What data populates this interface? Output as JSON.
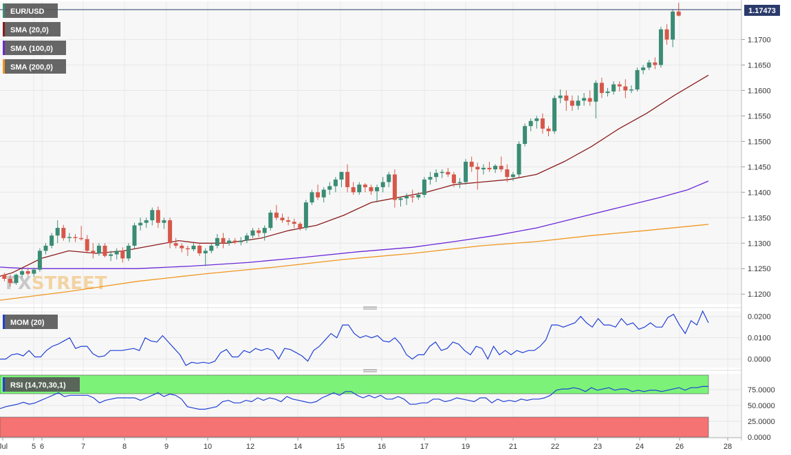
{
  "chart_data": [
    {
      "type": "candlestick",
      "symbol": "EUR/USD",
      "last_price": "1.17473",
      "overlays": [
        {
          "name": "SMA (20,0)",
          "color": "#8b1a1a"
        },
        {
          "name": "SMA (100,0)",
          "color": "#6a28d9"
        },
        {
          "name": "SMA (200,0)",
          "color": "#f0961e"
        }
      ],
      "y_ticks": [
        "1.1700",
        "1.1650",
        "1.1600",
        "1.1550",
        "1.1500",
        "1.1450",
        "1.1400",
        "1.1350",
        "1.1300",
        "1.1250",
        "1.1200"
      ],
      "x_ticks": [
        "Jul",
        "5",
        "6",
        "7",
        "8",
        "9",
        "10",
        "12",
        "14",
        "15",
        "16",
        "17",
        "19",
        "21",
        "22",
        "23",
        "24",
        "26",
        "28"
      ],
      "ylim": [
        1.118,
        1.1775
      ],
      "up_color": "#3a8c74",
      "down_color": "#d6584a",
      "candles": [
        [
          1.1238,
          1.1242,
          1.1225,
          1.123
        ],
        [
          1.123,
          1.1238,
          1.1215,
          1.1222
        ],
        [
          1.1222,
          1.124,
          1.1218,
          1.1238
        ],
        [
          1.1238,
          1.125,
          1.1232,
          1.1245
        ],
        [
          1.1245,
          1.1252,
          1.1236,
          1.124
        ],
        [
          1.124,
          1.1252,
          1.1234,
          1.1248
        ],
        [
          1.1248,
          1.129,
          1.1244,
          1.1285
        ],
        [
          1.1285,
          1.13,
          1.1278,
          1.1295
        ],
        [
          1.1295,
          1.132,
          1.129,
          1.1315
        ],
        [
          1.1315,
          1.1345,
          1.13,
          1.133
        ],
        [
          1.133,
          1.1336,
          1.1305,
          1.131
        ],
        [
          1.131,
          1.132,
          1.1302,
          1.1312
        ],
        [
          1.1312,
          1.1318,
          1.1302,
          1.131
        ],
        [
          1.131,
          1.1334,
          1.1305,
          1.1308
        ],
        [
          1.1308,
          1.1316,
          1.128,
          1.1285
        ],
        [
          1.1285,
          1.13,
          1.127,
          1.128
        ],
        [
          1.128,
          1.13,
          1.1275,
          1.1295
        ],
        [
          1.1295,
          1.13,
          1.1272,
          1.1275
        ],
        [
          1.1275,
          1.1285,
          1.1265,
          1.1278
        ],
        [
          1.1278,
          1.129,
          1.1268,
          1.1285
        ],
        [
          1.1285,
          1.1292,
          1.1262,
          1.127
        ],
        [
          1.127,
          1.13,
          1.1265,
          1.1295
        ],
        [
          1.1295,
          1.134,
          1.129,
          1.1335
        ],
        [
          1.1335,
          1.135,
          1.1325,
          1.134
        ],
        [
          1.134,
          1.135,
          1.133,
          1.1345
        ],
        [
          1.1345,
          1.137,
          1.1335,
          1.1365
        ],
        [
          1.1365,
          1.1372,
          1.133,
          1.134
        ],
        [
          1.134,
          1.135,
          1.1328,
          1.1345
        ],
        [
          1.1345,
          1.135,
          1.129,
          1.13
        ],
        [
          1.13,
          1.131,
          1.129,
          1.1295
        ],
        [
          1.1295,
          1.13,
          1.1282,
          1.129
        ],
        [
          1.129,
          1.1295,
          1.1275,
          1.1288
        ],
        [
          1.1288,
          1.13,
          1.1284,
          1.1295
        ],
        [
          1.1295,
          1.1298,
          1.1275,
          1.128
        ],
        [
          1.128,
          1.129,
          1.1255,
          1.1285
        ],
        [
          1.1285,
          1.13,
          1.128,
          1.1295
        ],
        [
          1.1295,
          1.1318,
          1.129,
          1.131
        ],
        [
          1.131,
          1.132,
          1.129,
          1.13
        ],
        [
          1.13,
          1.131,
          1.1295,
          1.1305
        ],
        [
          1.1305,
          1.131,
          1.1298,
          1.1302
        ],
        [
          1.1302,
          1.1312,
          1.1296,
          1.1305
        ],
        [
          1.1305,
          1.132,
          1.13,
          1.1315
        ],
        [
          1.1315,
          1.133,
          1.131,
          1.1325
        ],
        [
          1.1325,
          1.133,
          1.1312,
          1.132
        ],
        [
          1.132,
          1.1335,
          1.1305,
          1.133
        ],
        [
          1.133,
          1.1365,
          1.1325,
          1.136
        ],
        [
          1.136,
          1.1375,
          1.1345,
          1.135
        ],
        [
          1.135,
          1.1358,
          1.134,
          1.1345
        ],
        [
          1.1345,
          1.1352,
          1.1335,
          1.1342
        ],
        [
          1.1342,
          1.1348,
          1.133,
          1.1338
        ],
        [
          1.1338,
          1.1342,
          1.1325,
          1.133
        ],
        [
          1.133,
          1.1385,
          1.1325,
          1.138
        ],
        [
          1.138,
          1.1405,
          1.1375,
          1.14
        ],
        [
          1.14,
          1.1415,
          1.1385,
          1.139
        ],
        [
          1.139,
          1.141,
          1.138,
          1.1405
        ],
        [
          1.1405,
          1.142,
          1.1395,
          1.1412
        ],
        [
          1.1412,
          1.143,
          1.14,
          1.1425
        ],
        [
          1.1425,
          1.144,
          1.141,
          1.144
        ],
        [
          1.144,
          1.1455,
          1.14,
          1.141
        ],
        [
          1.141,
          1.142,
          1.1395,
          1.14
        ],
        [
          1.14,
          1.142,
          1.1395,
          1.1415
        ],
        [
          1.1415,
          1.1418,
          1.14,
          1.141
        ],
        [
          1.141,
          1.1415,
          1.1395,
          1.1402
        ],
        [
          1.1402,
          1.1415,
          1.138,
          1.141
        ],
        [
          1.141,
          1.143,
          1.14,
          1.142
        ],
        [
          1.142,
          1.144,
          1.141,
          1.1435
        ],
        [
          1.1435,
          1.1445,
          1.137,
          1.1385
        ],
        [
          1.1385,
          1.1392,
          1.1372,
          1.1388
        ],
        [
          1.1388,
          1.1398,
          1.1375,
          1.1392
        ],
        [
          1.1392,
          1.1405,
          1.138,
          1.139
        ],
        [
          1.139,
          1.14,
          1.1385,
          1.1395
        ],
        [
          1.1395,
          1.143,
          1.139,
          1.1425
        ],
        [
          1.1425,
          1.144,
          1.1415,
          1.143
        ],
        [
          1.143,
          1.1445,
          1.142,
          1.1438
        ],
        [
          1.1438,
          1.1445,
          1.1428,
          1.144
        ],
        [
          1.144,
          1.1448,
          1.143,
          1.1435
        ],
        [
          1.1435,
          1.144,
          1.141,
          1.1418
        ],
        [
          1.1418,
          1.1428,
          1.1408,
          1.142
        ],
        [
          1.142,
          1.1465,
          1.1415,
          1.146
        ],
        [
          1.146,
          1.147,
          1.144,
          1.145
        ],
        [
          1.145,
          1.1458,
          1.1405,
          1.1445
        ],
        [
          1.1445,
          1.1455,
          1.1435,
          1.1448
        ],
        [
          1.1448,
          1.146,
          1.144,
          1.1445
        ],
        [
          1.1445,
          1.1455,
          1.1438,
          1.1452
        ],
        [
          1.1452,
          1.147,
          1.144,
          1.1445
        ],
        [
          1.1445,
          1.1455,
          1.142,
          1.143
        ],
        [
          1.143,
          1.144,
          1.1422,
          1.1435
        ],
        [
          1.1435,
          1.15,
          1.143,
          1.1495
        ],
        [
          1.1495,
          1.1535,
          1.149,
          1.153
        ],
        [
          1.153,
          1.1545,
          1.152,
          1.154
        ],
        [
          1.154,
          1.155,
          1.1525,
          1.1545
        ],
        [
          1.1545,
          1.1555,
          1.1515,
          1.1525
        ],
        [
          1.1525,
          1.153,
          1.151,
          1.152
        ],
        [
          1.152,
          1.159,
          1.1515,
          1.1585
        ],
        [
          1.1585,
          1.1602,
          1.1575,
          1.159
        ],
        [
          1.159,
          1.16,
          1.156,
          1.158
        ],
        [
          1.158,
          1.159,
          1.156,
          1.157
        ],
        [
          1.157,
          1.159,
          1.1562,
          1.158
        ],
        [
          1.158,
          1.1595,
          1.157,
          1.1585
        ],
        [
          1.1585,
          1.16,
          1.157,
          1.1578
        ],
        [
          1.1578,
          1.162,
          1.1545,
          1.1615
        ],
        [
          1.1615,
          1.1625,
          1.1585,
          1.1595
        ],
        [
          1.1595,
          1.1605,
          1.1588,
          1.1598
        ],
        [
          1.1598,
          1.1618,
          1.1592,
          1.1612
        ],
        [
          1.1612,
          1.1618,
          1.1598,
          1.1608
        ],
        [
          1.1608,
          1.1622,
          1.1585,
          1.16
        ],
        [
          1.16,
          1.161,
          1.1595,
          1.1602
        ],
        [
          1.1602,
          1.1645,
          1.1598,
          1.164
        ],
        [
          1.164,
          1.165,
          1.1632,
          1.1645
        ],
        [
          1.1645,
          1.166,
          1.164,
          1.1655
        ],
        [
          1.1655,
          1.1665,
          1.1642,
          1.165
        ],
        [
          1.165,
          1.1725,
          1.1645,
          1.172
        ],
        [
          1.172,
          1.173,
          1.169,
          1.17
        ],
        [
          1.17,
          1.176,
          1.1685,
          1.1755
        ],
        [
          1.1755,
          1.1772,
          1.1745,
          1.1747
        ]
      ],
      "sma20": [
        [
          0,
          1.1235
        ],
        [
          18,
          1.1242
        ],
        [
          60,
          1.127
        ],
        [
          100,
          1.1285
        ],
        [
          140,
          1.128
        ],
        [
          180,
          1.1285
        ],
        [
          220,
          1.1295
        ],
        [
          260,
          1.1305
        ],
        [
          290,
          1.13
        ],
        [
          330,
          1.13
        ],
        [
          380,
          1.131
        ],
        [
          420,
          1.1325
        ],
        [
          460,
          1.1335
        ],
        [
          500,
          1.1355
        ],
        [
          540,
          1.138
        ],
        [
          580,
          1.139
        ],
        [
          620,
          1.14
        ],
        [
          660,
          1.1415
        ],
        [
          700,
          1.142
        ],
        [
          740,
          1.1425
        ],
        [
          780,
          1.1435
        ],
        [
          820,
          1.146
        ],
        [
          860,
          1.149
        ],
        [
          900,
          1.1525
        ],
        [
          940,
          1.1555
        ],
        [
          980,
          1.159
        ],
        [
          1030,
          1.163
        ]
      ],
      "sma100": [
        [
          0,
          1.1253
        ],
        [
          40,
          1.125
        ],
        [
          120,
          1.125
        ],
        [
          200,
          1.125
        ],
        [
          280,
          1.1255
        ],
        [
          360,
          1.1262
        ],
        [
          440,
          1.1272
        ],
        [
          520,
          1.1283
        ],
        [
          600,
          1.1292
        ],
        [
          660,
          1.1303
        ],
        [
          720,
          1.1315
        ],
        [
          780,
          1.133
        ],
        [
          840,
          1.135
        ],
        [
          900,
          1.137
        ],
        [
          960,
          1.139
        ],
        [
          1000,
          1.1405
        ],
        [
          1030,
          1.1422
        ]
      ],
      "sma200": [
        [
          0,
          1.1188
        ],
        [
          100,
          1.1205
        ],
        [
          200,
          1.1225
        ],
        [
          300,
          1.124
        ],
        [
          400,
          1.1253
        ],
        [
          500,
          1.1268
        ],
        [
          600,
          1.128
        ],
        [
          700,
          1.1295
        ],
        [
          780,
          1.1303
        ],
        [
          860,
          1.1315
        ],
        [
          940,
          1.1325
        ],
        [
          1030,
          1.1337
        ]
      ]
    },
    {
      "type": "line",
      "name": "MOM (20)",
      "color": "#1f3fd6",
      "y_ticks": [
        "0.0200",
        "0.0100",
        "0.0000"
      ],
      "ylim": [
        -0.004,
        0.0225
      ],
      "values": [
        0.0,
        0.0,
        0.002,
        0.0025,
        0.0015,
        0.004,
        0.001,
        0.001,
        0.004,
        0.006,
        0.007,
        0.0085,
        0.01,
        0.005,
        0.006,
        0.006,
        0.0025,
        0.001,
        0.0015,
        0.004,
        0.004,
        0.004,
        0.0045,
        0.005,
        0.004,
        0.01,
        0.0085,
        0.008,
        0.011,
        0.008,
        0.005,
        0.002,
        -0.003,
        -0.0015,
        -0.002,
        -0.0015,
        -0.002,
        -0.001,
        0.003,
        0.0045,
        0.001,
        0.001,
        0.004,
        0.003,
        0.005,
        0.004,
        0.005,
        0.004,
        0.0,
        0.005,
        0.0045,
        0.003,
        0.0015,
        -0.001,
        0.004,
        0.006,
        0.009,
        0.012,
        0.01,
        0.016,
        0.016,
        0.012,
        0.01,
        0.011,
        0.01,
        0.011,
        0.0085,
        0.008,
        0.01,
        0.007,
        0.002,
        0.0,
        0.002,
        0.002,
        0.006,
        0.008,
        0.004,
        0.005,
        0.008,
        0.007,
        0.004,
        0.002,
        0.006,
        0.005,
        0.0,
        0.006,
        0.002,
        0.004,
        0.002,
        0.004,
        0.003,
        0.004,
        0.004,
        0.006,
        0.009,
        0.016,
        0.016,
        0.015,
        0.016,
        0.017,
        0.02,
        0.017,
        0.015,
        0.019,
        0.016,
        0.016,
        0.015,
        0.019,
        0.016,
        0.017,
        0.014,
        0.015,
        0.017,
        0.015,
        0.015,
        0.0195,
        0.021,
        0.016,
        0.012,
        0.018,
        0.016,
        0.0225,
        0.017
      ]
    },
    {
      "type": "line",
      "name": "RSI (14,70,30,1)",
      "color": "#1f3fd6",
      "y_ticks": [
        "75.0000",
        "50.0000",
        "25.0000",
        "0.0000"
      ],
      "ylim": [
        0,
        100
      ],
      "overbought": 70,
      "oversold": 30,
      "overbought_color": "#7cf279",
      "oversold_color": "#f57373",
      "values": [
        45,
        48,
        50,
        52,
        55,
        52,
        54,
        58,
        62,
        66,
        70,
        64,
        66,
        66,
        66,
        66,
        62,
        54,
        58,
        60,
        62,
        62,
        62,
        62,
        58,
        62,
        66,
        70,
        64,
        68,
        66,
        60,
        48,
        46,
        44,
        44,
        46,
        48,
        56,
        58,
        54,
        54,
        58,
        56,
        62,
        58,
        62,
        60,
        56,
        64,
        60,
        58,
        56,
        54,
        56,
        62,
        66,
        70,
        66,
        72,
        72,
        66,
        62,
        66,
        62,
        66,
        60,
        60,
        64,
        60,
        52,
        52,
        54,
        54,
        60,
        60,
        56,
        58,
        62,
        60,
        58,
        56,
        62,
        62,
        54,
        60,
        56,
        58,
        56,
        60,
        58,
        60,
        60,
        62,
        66,
        74,
        76,
        76,
        78,
        76,
        72,
        78,
        74,
        76,
        78,
        74,
        76,
        76,
        72,
        74,
        72,
        74,
        74,
        72,
        74,
        76,
        78,
        74,
        78,
        78,
        80,
        80
      ]
    }
  ]
}
